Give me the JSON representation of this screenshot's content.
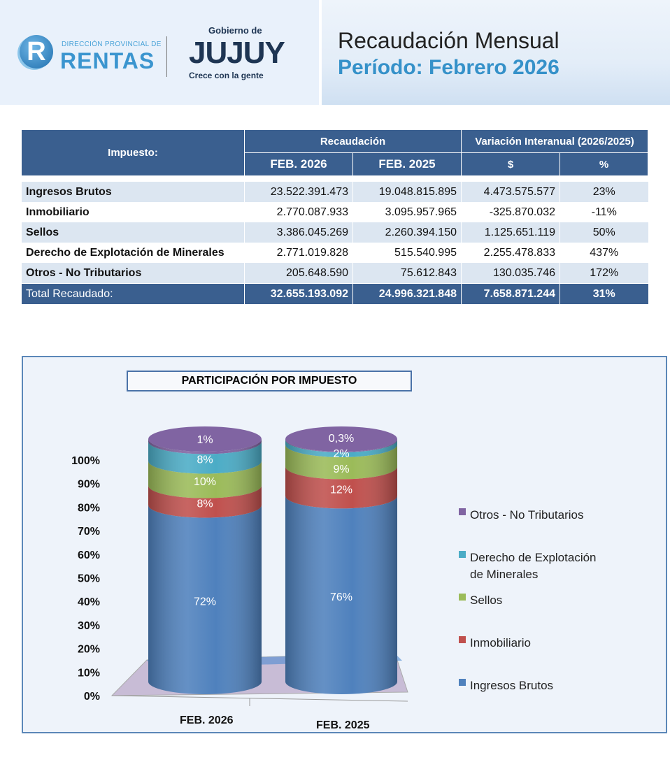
{
  "header": {
    "logo_rentas_small": "DIRECCIÓN PROVINCIAL DE",
    "logo_rentas_big": "RENTAS",
    "logo_rentas_letter": "R",
    "logo_gob_top": "Gobierno de",
    "logo_gob_main": "JUJUY",
    "logo_gob_tag": "Crece con la gente",
    "title": "Recaudación Mensual",
    "period": "Período: Febrero 2026"
  },
  "table": {
    "col_impuesto": "Impuesto:",
    "col_recaudacion": "Recaudación",
    "col_variacion": "Variación Interanual (2026/2025)",
    "sub": [
      "FEB. 2026",
      "FEB. 2025",
      "$",
      "%"
    ],
    "rows": [
      [
        "Ingresos Brutos",
        "23.522.391.473",
        "19.048.815.895",
        "4.473.575.577",
        "23%"
      ],
      [
        "Inmobiliario",
        "2.770.087.933",
        "3.095.957.965",
        "-325.870.032",
        "-11%"
      ],
      [
        "Sellos",
        "3.386.045.269",
        "2.260.394.150",
        "1.125.651.119",
        "50%"
      ],
      [
        "Derecho de Explotación de Minerales",
        "2.771.019.828",
        "515.540.995",
        "2.255.478.833",
        "437%"
      ],
      [
        "Otros - No Tributarios",
        "205.648.590",
        "75.612.843",
        "130.035.746",
        "172%"
      ]
    ],
    "total": [
      "Total Recaudado:",
      "32.655.193.092",
      "24.996.321.848",
      "7.658.871.244",
      "31%"
    ]
  },
  "chart_data": {
    "type": "bar",
    "stacked": true,
    "style": "3d-cylinder-100-percent",
    "title": "PARTICIPACIÓN POR IMPUESTO",
    "categories": [
      "FEB. 2026",
      "FEB. 2025"
    ],
    "yticks": [
      "0%",
      "10%",
      "20%",
      "30%",
      "40%",
      "50%",
      "60%",
      "70%",
      "80%",
      "90%",
      "100%"
    ],
    "ylim": [
      0,
      100
    ],
    "legend_position": "right",
    "series": [
      {
        "name": "Ingresos Brutos",
        "values": [
          72,
          76
        ],
        "labels": [
          "72%",
          "76%"
        ],
        "color": "#4f81bd"
      },
      {
        "name": "Inmobiliario",
        "values": [
          8,
          12
        ],
        "labels": [
          "8%",
          "12%"
        ],
        "color": "#c0504d"
      },
      {
        "name": "Sellos",
        "values": [
          10,
          9
        ],
        "labels": [
          "10%",
          "9%"
        ],
        "color": "#9bbb59"
      },
      {
        "name": "Derecho de Explotación de Minerales",
        "values": [
          8,
          2
        ],
        "labels": [
          "8%",
          "2%"
        ],
        "color": "#4bacc6"
      },
      {
        "name": "Otros - No Tributarios",
        "values": [
          1,
          0.3
        ],
        "labels": [
          "1%",
          "0,3%"
        ],
        "color": "#8064a2"
      }
    ]
  }
}
